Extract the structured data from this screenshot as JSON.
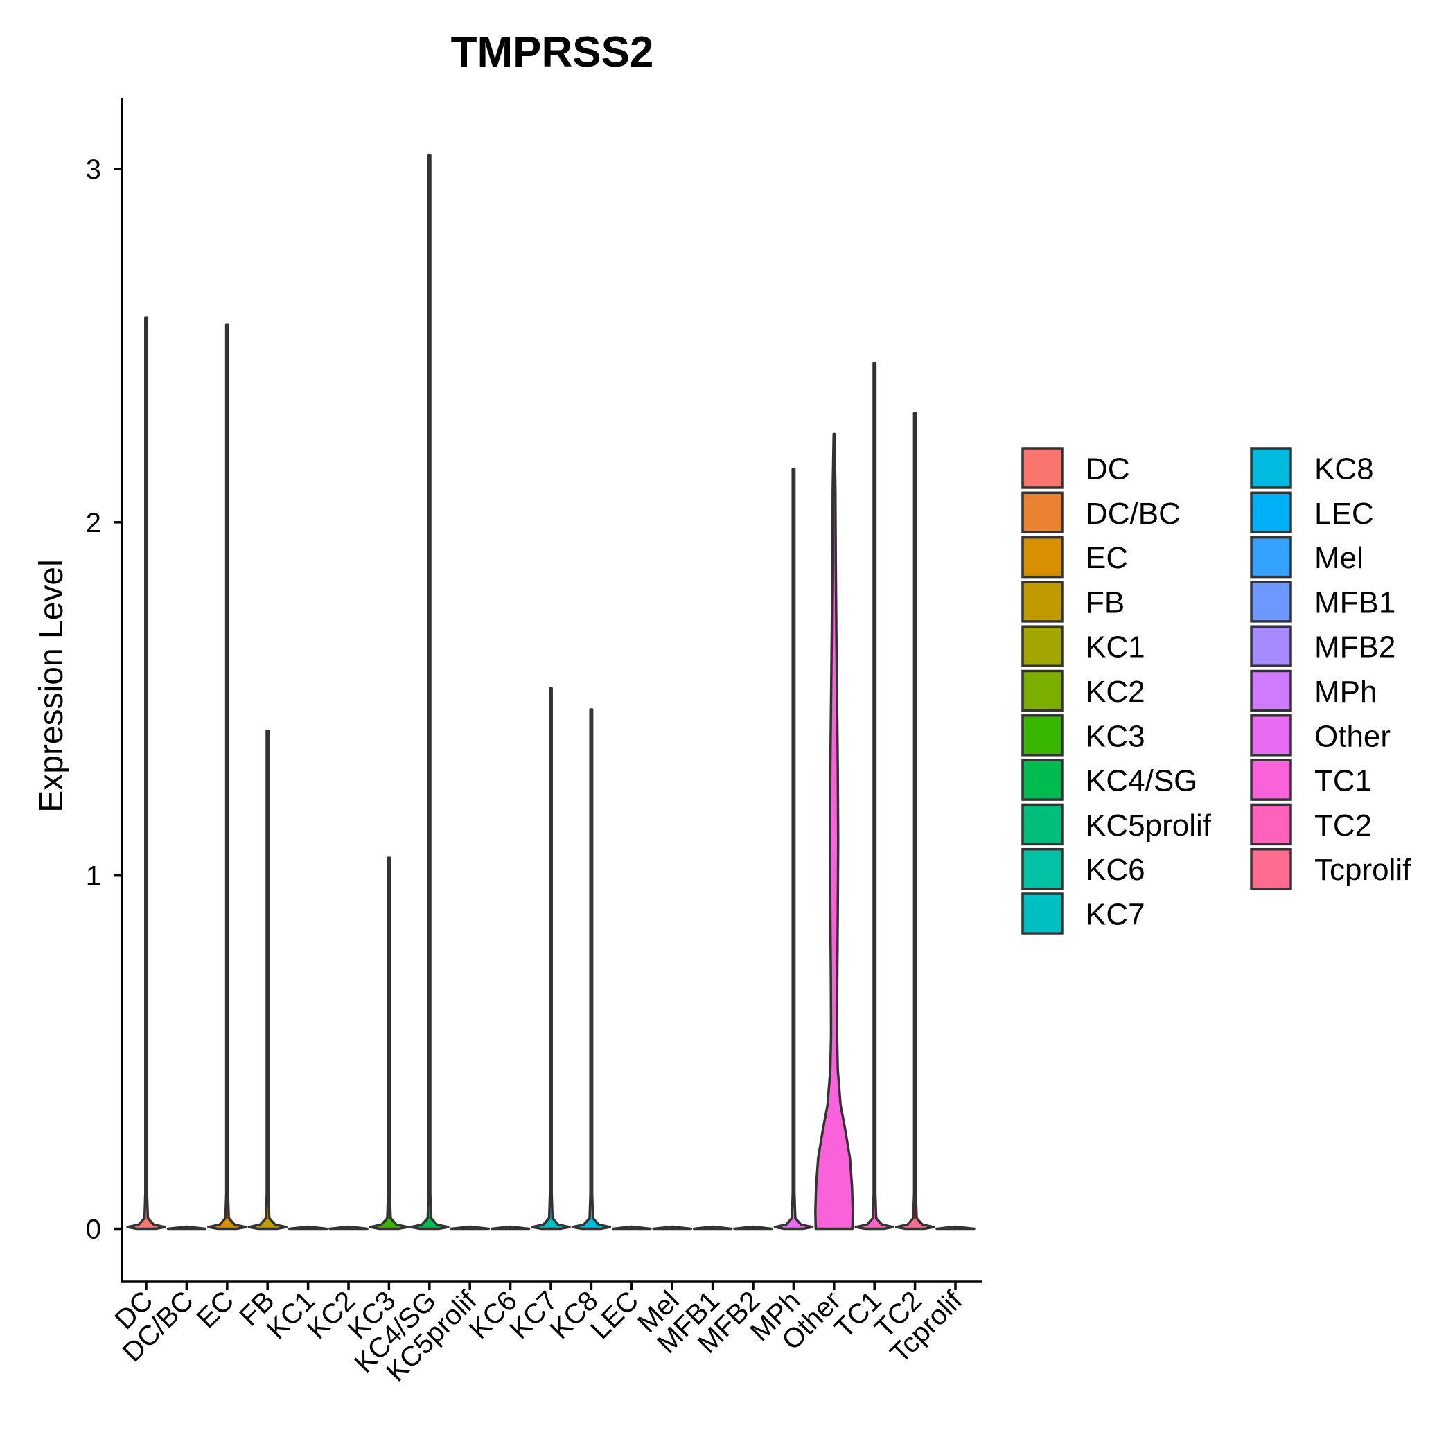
{
  "chart_data": {
    "type": "violin",
    "title": "TMPRSS2",
    "xlabel": "",
    "ylabel": "Expression Level",
    "ylim": [
      -0.15,
      3.2
    ],
    "yticks": [
      0,
      1,
      2,
      3
    ],
    "grid": false,
    "legend_position": "right",
    "categories": [
      "DC",
      "DC/BC",
      "EC",
      "FB",
      "KC1",
      "KC2",
      "KC3",
      "KC4/SG",
      "KC5prolif",
      "KC6",
      "KC7",
      "KC8",
      "LEC",
      "Mel",
      "MFB1",
      "MFB2",
      "MPh",
      "Other",
      "TC1",
      "TC2",
      "Tcprolif"
    ],
    "colors": [
      "#F8766D",
      "#EA8331",
      "#D89000",
      "#C09B00",
      "#A3A500",
      "#7CAE00",
      "#39B600",
      "#00BB4E",
      "#00BF7D",
      "#00C1A3",
      "#00BFC4",
      "#00BAE0",
      "#00B0F6",
      "#35A2FF",
      "#9590FF",
      "#C77CFF",
      "#E76BF3",
      "#FA62DB",
      "#FF62BC",
      "#FF6C90",
      "#FF6C90"
    ],
    "max_values": [
      2.58,
      0,
      2.56,
      1.41,
      0,
      0,
      1.05,
      3.04,
      0,
      0,
      1.53,
      1.47,
      0,
      0,
      0,
      0,
      2.15,
      2.25,
      2.45,
      2.31,
      0
    ],
    "violins": [
      {
        "category": "DC",
        "profile": [
          [
            0,
            0.5
          ],
          [
            0.005,
            1
          ],
          [
            0.012,
            0.4
          ],
          [
            0.03,
            0.09
          ],
          [
            0.1,
            0.045
          ],
          [
            2.58,
            0.045
          ]
        ]
      },
      {
        "category": "DC/BC",
        "profile": [
          [
            0,
            1
          ],
          [
            0.006,
            0
          ]
        ]
      },
      {
        "category": "EC",
        "profile": [
          [
            0,
            0.5
          ],
          [
            0.005,
            1
          ],
          [
            0.012,
            0.4
          ],
          [
            0.03,
            0.09
          ],
          [
            0.1,
            0.045
          ],
          [
            2.56,
            0.045
          ]
        ]
      },
      {
        "category": "FB",
        "profile": [
          [
            0,
            0.5
          ],
          [
            0.005,
            1
          ],
          [
            0.012,
            0.4
          ],
          [
            0.03,
            0.09
          ],
          [
            0.1,
            0.045
          ],
          [
            1.41,
            0.045
          ]
        ]
      },
      {
        "category": "KC1",
        "profile": [
          [
            0,
            1
          ],
          [
            0.006,
            0
          ]
        ]
      },
      {
        "category": "KC2",
        "profile": [
          [
            0,
            1
          ],
          [
            0.006,
            0
          ]
        ]
      },
      {
        "category": "KC3",
        "profile": [
          [
            0,
            0.5
          ],
          [
            0.005,
            1
          ],
          [
            0.012,
            0.4
          ],
          [
            0.03,
            0.09
          ],
          [
            0.1,
            0.045
          ],
          [
            1.05,
            0.045
          ]
        ]
      },
      {
        "category": "KC4/SG",
        "profile": [
          [
            0,
            0.5
          ],
          [
            0.005,
            1
          ],
          [
            0.012,
            0.4
          ],
          [
            0.03,
            0.09
          ],
          [
            0.1,
            0.045
          ],
          [
            3.04,
            0.045
          ]
        ]
      },
      {
        "category": "KC5prolif",
        "profile": [
          [
            0,
            1
          ],
          [
            0.006,
            0
          ]
        ]
      },
      {
        "category": "KC6",
        "profile": [
          [
            0,
            1
          ],
          [
            0.006,
            0
          ]
        ]
      },
      {
        "category": "KC7",
        "profile": [
          [
            0,
            0.5
          ],
          [
            0.005,
            1
          ],
          [
            0.012,
            0.4
          ],
          [
            0.03,
            0.09
          ],
          [
            0.1,
            0.045
          ],
          [
            1.53,
            0.045
          ]
        ]
      },
      {
        "category": "KC8",
        "profile": [
          [
            0,
            0.5
          ],
          [
            0.005,
            1
          ],
          [
            0.012,
            0.4
          ],
          [
            0.03,
            0.09
          ],
          [
            0.1,
            0.045
          ],
          [
            1.47,
            0.045
          ]
        ]
      },
      {
        "category": "LEC",
        "profile": [
          [
            0,
            1
          ],
          [
            0.006,
            0
          ]
        ]
      },
      {
        "category": "Mel",
        "profile": [
          [
            0,
            1
          ],
          [
            0.006,
            0
          ]
        ]
      },
      {
        "category": "MFB1",
        "profile": [
          [
            0,
            1
          ],
          [
            0.006,
            0
          ]
        ]
      },
      {
        "category": "MFB2",
        "profile": [
          [
            0,
            1
          ],
          [
            0.006,
            0
          ]
        ]
      },
      {
        "category": "MPh",
        "profile": [
          [
            0,
            0.5
          ],
          [
            0.005,
            1
          ],
          [
            0.012,
            0.4
          ],
          [
            0.03,
            0.09
          ],
          [
            0.1,
            0.045
          ],
          [
            2.15,
            0.045
          ]
        ]
      },
      {
        "category": "Other",
        "profile": [
          [
            0,
            0.98
          ],
          [
            0.05,
            1
          ],
          [
            0.12,
            0.96
          ],
          [
            0.2,
            0.85
          ],
          [
            0.28,
            0.6
          ],
          [
            0.35,
            0.35
          ],
          [
            0.45,
            0.2
          ],
          [
            0.55,
            0.16
          ],
          [
            0.7,
            0.17
          ],
          [
            0.9,
            0.2
          ],
          [
            1.1,
            0.22
          ],
          [
            1.3,
            0.2
          ],
          [
            1.5,
            0.16
          ],
          [
            1.7,
            0.12
          ],
          [
            1.9,
            0.09
          ],
          [
            2.1,
            0.07
          ],
          [
            2.25,
            0.02
          ]
        ]
      },
      {
        "category": "TC1",
        "profile": [
          [
            0,
            0.5
          ],
          [
            0.005,
            1
          ],
          [
            0.012,
            0.4
          ],
          [
            0.03,
            0.09
          ],
          [
            0.1,
            0.045
          ],
          [
            2.45,
            0.045
          ]
        ]
      },
      {
        "category": "TC2",
        "profile": [
          [
            0,
            0.5
          ],
          [
            0.005,
            1
          ],
          [
            0.012,
            0.4
          ],
          [
            0.03,
            0.09
          ],
          [
            0.1,
            0.045
          ],
          [
            2.31,
            0.045
          ]
        ]
      },
      {
        "category": "Tcprolif",
        "profile": [
          [
            0,
            1
          ],
          [
            0.006,
            0
          ]
        ]
      }
    ],
    "legend": {
      "entries": [
        {
          "label": "DC",
          "color": "#F8766D"
        },
        {
          "label": "DC/BC",
          "color": "#EA8331"
        },
        {
          "label": "EC",
          "color": "#D89000"
        },
        {
          "label": "FB",
          "color": "#C09B00"
        },
        {
          "label": "KC1",
          "color": "#A3A500"
        },
        {
          "label": "KC2",
          "color": "#7CAE00"
        },
        {
          "label": "KC3",
          "color": "#39B600"
        },
        {
          "label": "KC4/SG",
          "color": "#00BB4E"
        },
        {
          "label": "KC5prolif",
          "color": "#00BF7D"
        },
        {
          "label": "KC6",
          "color": "#00C1A3"
        },
        {
          "label": "KC7",
          "color": "#00BFC4"
        },
        {
          "label": "KC8",
          "color": "#00BAE0"
        },
        {
          "label": "LEC",
          "color": "#00B0F6"
        },
        {
          "label": "Mel",
          "color": "#35A2FF"
        },
        {
          "label": "MFB1",
          "color": "#6F98FF"
        },
        {
          "label": "MFB2",
          "color": "#A68BFF"
        },
        {
          "label": "MPh",
          "color": "#D07AFF"
        },
        {
          "label": "Other",
          "color": "#E76BF3"
        },
        {
          "label": "TC1",
          "color": "#FA62DB"
        },
        {
          "label": "TC2",
          "color": "#FF62BC"
        },
        {
          "label": "Tcprolif",
          "color": "#FF6C90"
        }
      ]
    }
  }
}
